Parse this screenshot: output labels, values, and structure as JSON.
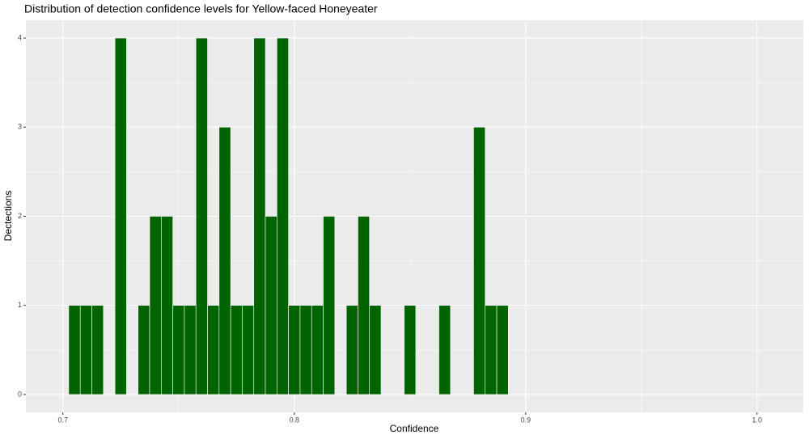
{
  "chart_data": {
    "type": "histogram",
    "title": "Distribution of detection confidence levels for Yellow-faced Honeyeater",
    "x_label": "Confidence",
    "y_label": "Dectections",
    "bins": [
      0.7025,
      0.7075,
      0.7125,
      0.7175,
      0.7225,
      0.7275,
      0.7325,
      0.7375,
      0.7425,
      0.7475,
      0.7525,
      0.7575,
      0.7625,
      0.7675,
      0.7725,
      0.7775,
      0.7825,
      0.7875,
      0.7925,
      0.7975,
      0.8025,
      0.8075,
      0.8125,
      0.8175,
      0.8225,
      0.8275,
      0.8325,
      0.8375,
      0.8425,
      0.8475,
      0.8525,
      0.8575,
      0.8625,
      0.8675,
      0.8725,
      0.8775,
      0.8825,
      0.8875,
      0.8925
    ],
    "counts": [
      1,
      1,
      1,
      0,
      4,
      0,
      1,
      2,
      2,
      1,
      1,
      4,
      1,
      3,
      1,
      1,
      4,
      2,
      4,
      1,
      1,
      1,
      2,
      0,
      1,
      2,
      1,
      0,
      0,
      1,
      0,
      0,
      1,
      0,
      0,
      3,
      1,
      1
    ],
    "color": "#006400",
    "xlim": [
      0.684,
      1.02
    ],
    "ylim": [
      -0.2,
      4.2
    ],
    "xticks": [
      0.7,
      0.8,
      0.9,
      {
        "value": 1,
        "label": "1.0"
      }
    ],
    "yticks": [
      0,
      1,
      2,
      3,
      4
    ],
    "xminor": [
      0.75,
      0.85,
      0.95
    ],
    "yminor": [
      0.5,
      1.5,
      2.5,
      3.5
    ],
    "grid": true
  }
}
